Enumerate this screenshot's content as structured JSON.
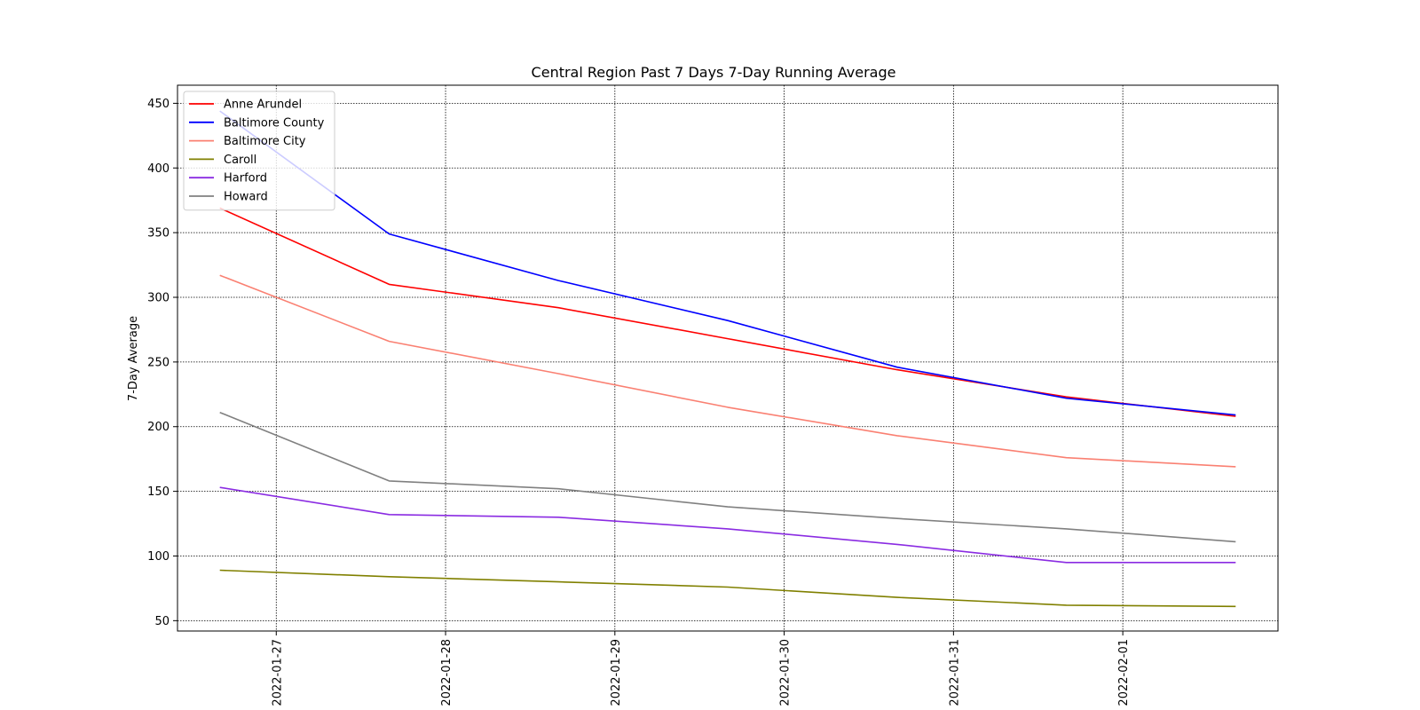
{
  "chart_data": {
    "type": "line",
    "title": "Central Region Past 7 Days 7-Day Running Average",
    "xlabel": "",
    "ylabel": "7-Day Average",
    "x": [
      "2022-01-26 16:00",
      "2022-01-27 16:00",
      "2022-01-28 16:00",
      "2022-01-29 16:00",
      "2022-01-30 16:00",
      "2022-01-31 16:00",
      "2022-02-01 16:00"
    ],
    "xticks": [
      "2022-01-27",
      "2022-01-28",
      "2022-01-29",
      "2022-01-30",
      "2022-01-31",
      "2022-02-01"
    ],
    "xlim": [
      "2022-01-26 10:00",
      "2022-02-01 22:00"
    ],
    "yticks": [
      50,
      100,
      150,
      200,
      250,
      300,
      350,
      400,
      450
    ],
    "ylim": [
      42,
      464
    ],
    "grid": true,
    "legend_position": "upper-left",
    "series": [
      {
        "name": "Anne Arundel",
        "color": "#ff0000",
        "values": [
          369,
          310,
          292,
          268,
          244,
          223,
          208
        ]
      },
      {
        "name": "Baltimore County",
        "color": "#0000ff",
        "values": [
          444,
          349,
          313,
          282,
          246,
          222,
          209
        ]
      },
      {
        "name": "Baltimore City",
        "color": "#fa8072",
        "values": [
          317,
          266,
          241,
          215,
          193,
          176,
          169
        ]
      },
      {
        "name": "Caroll",
        "color": "#808000",
        "values": [
          89,
          84,
          80,
          76,
          68,
          62,
          61
        ]
      },
      {
        "name": "Harford",
        "color": "#8a2be2",
        "values": [
          153,
          132,
          130,
          121,
          109,
          95,
          95
        ]
      },
      {
        "name": "Howard",
        "color": "#808080",
        "values": [
          211,
          158,
          152,
          138,
          129,
          121,
          111
        ]
      }
    ]
  }
}
